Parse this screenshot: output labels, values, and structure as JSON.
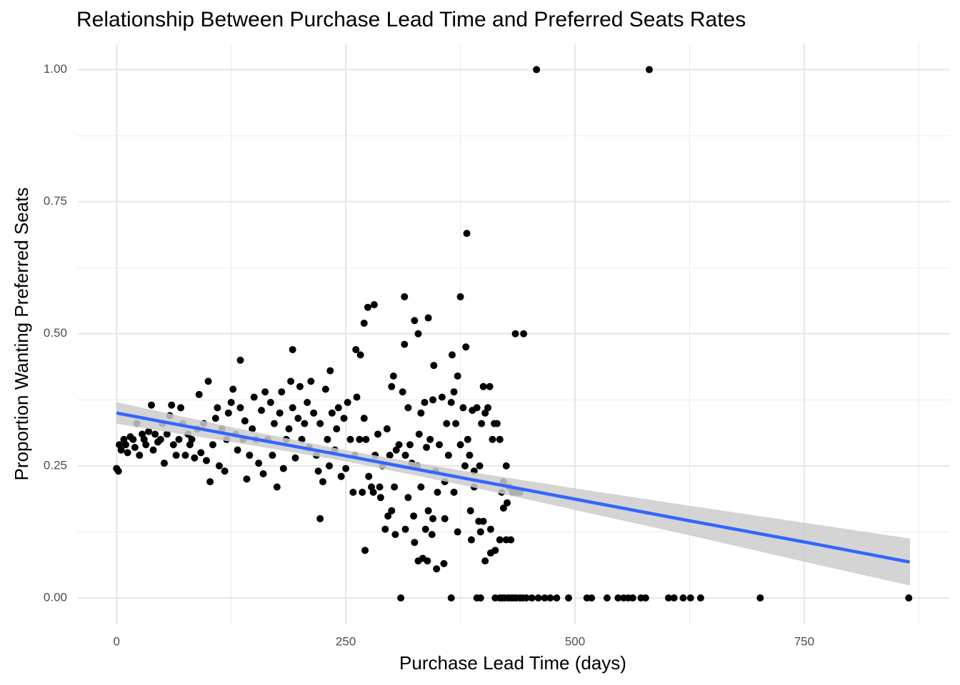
{
  "chart_data": {
    "type": "scatter",
    "title": "Relationship Between Purchase Lead Time and Preferred Seats Rates",
    "x_label": "Purchase Lead Time (days)",
    "y_label": "Proportion Wanting Preferred Seats",
    "xlim": [
      -43,
      909
    ],
    "ylim": [
      -0.05,
      1.048
    ],
    "xticks": [
      0,
      250,
      500,
      750
    ],
    "yticks": [
      {
        "value": 0,
        "label": "0.00"
      },
      {
        "value": 0.25,
        "label": "0.25"
      },
      {
        "value": 0.5,
        "label": "0.50"
      },
      {
        "value": 0.75,
        "label": "0.75"
      },
      {
        "value": 1,
        "label": "1.00"
      }
    ],
    "x_minor_grid": [
      125,
      375,
      625,
      875
    ],
    "y_minor_grid": [
      0.125,
      0.375,
      0.625,
      0.875
    ],
    "grid": true,
    "points": {
      "color": "#000000",
      "x": [
        310,
        365,
        393,
        397,
        413,
        418,
        420,
        423,
        427,
        430,
        433,
        436,
        440,
        443,
        447,
        453,
        460,
        467,
        473,
        480,
        493,
        513,
        518,
        535,
        547,
        553,
        558,
        563,
        572,
        577,
        602,
        608,
        618,
        626,
        637,
        702,
        864,
        458,
        581,
        382,
        375,
        314,
        281,
        274,
        325,
        270,
        340,
        329,
        435,
        444,
        314,
        381,
        261,
        192,
        366,
        266,
        135,
        346,
        233,
        222,
        271,
        329,
        334,
        339,
        349,
        357,
        325,
        402,
        408,
        413,
        418,
        425,
        430,
        387,
        372,
        397,
        408,
        395,
        400,
        315,
        304,
        337,
        344,
        293,
        296,
        300,
        324,
        340,
        345,
        358,
        318,
        386,
        422,
        426,
        280,
        287,
        303,
        350,
        368,
        332,
        390,
        0,
        2,
        3,
        5,
        8,
        10,
        12,
        15,
        18,
        20,
        22,
        25,
        28,
        30,
        32,
        35,
        38,
        40,
        42,
        45,
        48,
        50,
        52,
        55,
        58,
        60,
        62,
        65,
        68,
        70,
        72,
        75,
        78,
        80,
        82,
        85,
        88,
        90,
        92,
        95,
        98,
        100,
        102,
        105,
        108,
        110,
        112,
        115,
        118,
        120,
        122,
        125,
        127,
        130,
        132,
        135,
        138,
        140,
        142,
        145,
        148,
        150,
        152,
        155,
        158,
        160,
        162,
        165,
        168,
        170,
        172,
        175,
        178,
        180,
        182,
        185,
        188,
        190,
        192,
        195,
        198,
        200,
        202,
        205,
        208,
        210,
        212,
        215,
        218,
        220,
        222,
        225,
        228,
        230,
        232,
        235,
        238,
        240,
        242,
        245,
        248,
        250,
        252,
        255,
        258,
        260,
        262,
        265,
        268,
        270,
        272,
        275,
        278,
        282,
        285,
        288,
        290,
        295,
        298,
        300,
        302,
        305,
        308,
        312,
        315,
        318,
        320,
        322,
        328,
        330,
        332,
        336,
        338,
        342,
        345,
        348,
        352,
        355,
        358,
        360,
        362,
        365,
        368,
        370,
        372,
        375,
        378,
        380,
        383,
        385,
        388,
        390,
        393,
        396,
        398,
        400,
        402,
        405,
        407,
        410,
        412,
        415,
        418,
        420,
        422,
        425,
        428,
        432,
        436,
        440
      ],
      "y": [
        0,
        0,
        0,
        0,
        0,
        0,
        0,
        0,
        0,
        0,
        0,
        0,
        0,
        0,
        0,
        0,
        0,
        0,
        0,
        0,
        0,
        0,
        0,
        0,
        0,
        0,
        0,
        0,
        0,
        0,
        0,
        0,
        0,
        0,
        0,
        0,
        0,
        1,
        1,
        0.69,
        0.57,
        0.57,
        0.555,
        0.55,
        0.525,
        0.52,
        0.53,
        0.5,
        0.5,
        0.5,
        0.48,
        0.475,
        0.47,
        0.47,
        0.46,
        0.46,
        0.45,
        0.44,
        0.43,
        0.15,
        0.09,
        0.07,
        0.075,
        0.07,
        0.055,
        0.065,
        0.105,
        0.07,
        0.085,
        0.09,
        0.11,
        0.11,
        0.11,
        0.11,
        0.125,
        0.125,
        0.13,
        0.145,
        0.145,
        0.13,
        0.12,
        0.13,
        0.12,
        0.13,
        0.155,
        0.165,
        0.155,
        0.165,
        0.15,
        0.15,
        0.19,
        0.165,
        0.17,
        0.18,
        0.2,
        0.21,
        0.21,
        0.2,
        0.2,
        0.21,
        0.21,
        0.245,
        0.24,
        0.29,
        0.28,
        0.3,
        0.29,
        0.275,
        0.305,
        0.3,
        0.285,
        0.33,
        0.27,
        0.31,
        0.3,
        0.29,
        0.315,
        0.365,
        0.28,
        0.31,
        0.295,
        0.3,
        0.33,
        0.255,
        0.31,
        0.345,
        0.365,
        0.29,
        0.27,
        0.3,
        0.36,
        0.33,
        0.27,
        0.31,
        0.29,
        0.3,
        0.265,
        0.32,
        0.385,
        0.275,
        0.33,
        0.26,
        0.41,
        0.22,
        0.29,
        0.34,
        0.36,
        0.25,
        0.32,
        0.24,
        0.3,
        0.35,
        0.37,
        0.395,
        0.31,
        0.28,
        0.36,
        0.3,
        0.335,
        0.225,
        0.27,
        0.32,
        0.38,
        0.3,
        0.255,
        0.355,
        0.235,
        0.39,
        0.3,
        0.37,
        0.27,
        0.33,
        0.21,
        0.35,
        0.39,
        0.245,
        0.3,
        0.32,
        0.41,
        0.36,
        0.265,
        0.34,
        0.4,
        0.3,
        0.33,
        0.37,
        0.285,
        0.41,
        0.35,
        0.27,
        0.24,
        0.33,
        0.22,
        0.395,
        0.3,
        0.25,
        0.35,
        0.28,
        0.32,
        0.36,
        0.23,
        0.34,
        0.245,
        0.37,
        0.3,
        0.2,
        0.27,
        0.38,
        0.3,
        0.2,
        0.34,
        0.3,
        0.23,
        0.21,
        0.27,
        0.31,
        0.19,
        0.25,
        0.32,
        0.27,
        0.4,
        0.42,
        0.28,
        0.29,
        0.39,
        0.27,
        0.36,
        0.29,
        0.255,
        0.25,
        0.31,
        0.35,
        0.37,
        0.285,
        0.3,
        0.375,
        0.24,
        0.29,
        0.38,
        0.22,
        0.33,
        0.27,
        0.37,
        0.39,
        0.33,
        0.42,
        0.29,
        0.36,
        0.25,
        0.3,
        0.27,
        0.355,
        0.24,
        0.36,
        0.25,
        0.33,
        0.4,
        0.35,
        0.36,
        0.4,
        0.3,
        0.33,
        0.33,
        0.3,
        0.2,
        0.22,
        0.25,
        0.21,
        0.2,
        0.2,
        0.2
      ]
    },
    "fit": {
      "color": "#3366ff",
      "band_color": "#cccccc",
      "x": [
        0,
        125,
        250,
        375,
        500,
        625,
        750,
        865
      ],
      "y": [
        0.35,
        0.309,
        0.269,
        0.228,
        0.187,
        0.146,
        0.106,
        0.068
      ],
      "lower": [
        0.33,
        0.296,
        0.259,
        0.215,
        0.167,
        0.119,
        0.069,
        0.024
      ],
      "upper": [
        0.37,
        0.323,
        0.279,
        0.241,
        0.207,
        0.174,
        0.142,
        0.112
      ]
    }
  }
}
